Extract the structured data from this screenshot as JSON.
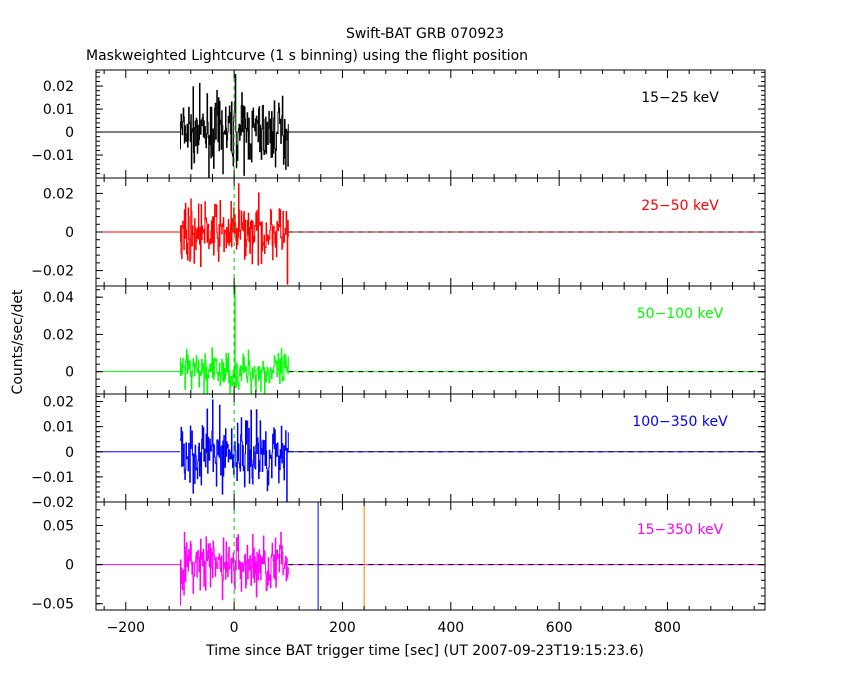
{
  "title": "Swift-BAT GRB 070923",
  "subtitle": "Maskweighted Lightcurve (1 s binning) using the flight position",
  "ylabel": "Counts/sec/det",
  "xlabel": "Time since BAT trigger time [sec] (UT 2007-09-23T19:15:23.6)",
  "chart_data": {
    "type": "line",
    "title": "Swift-BAT GRB 070923",
    "subtitle": "Maskweighted Lightcurve (1 s binning) using the flight position",
    "xlabel": "Time since BAT trigger time [sec] (UT 2007-09-23T19:15:23.6)",
    "ylabel": "Counts/sec/det",
    "xlim": [
      -255,
      980
    ],
    "x_ticks": [
      -200,
      0,
      200,
      400,
      600,
      800
    ],
    "x_tick_labels": [
      "−200",
      "0",
      "200",
      "400",
      "600",
      "800"
    ],
    "data_span": [
      -100,
      100
    ],
    "markers": [
      {
        "name": "T0",
        "x": 0,
        "color": "#00c000",
        "style": "dashed"
      },
      {
        "name": "blue-line",
        "x": 155,
        "color": "#0000ff",
        "style": "solid"
      },
      {
        "name": "orange-line",
        "x": 240,
        "color": "#ff8000",
        "style": "solid"
      }
    ],
    "panels": [
      {
        "band": "15−25 keV",
        "color": "#000000",
        "ylim": [
          -0.02,
          0.027
        ],
        "y_ticks": [
          -0.01,
          0,
          0.01,
          0.02
        ],
        "y_tick_labels": [
          "−0.01",
          "0",
          "0.01",
          "0.02"
        ],
        "noise_amplitude": 0.0085,
        "peak": {
          "x": 2,
          "y": 0.025
        },
        "tail": null,
        "dashed_zero": false
      },
      {
        "band": "25−50 keV",
        "color": "#ff0000",
        "ylim": [
          -0.028,
          0.028
        ],
        "y_ticks": [
          -0.02,
          0,
          0.02
        ],
        "y_tick_labels": [
          "−0.02",
          "0",
          "0.02"
        ],
        "noise_amplitude": 0.0085,
        "peak": {
          "x": 8,
          "y": 0.025
        },
        "tail": {
          "x": 98,
          "y": -0.027
        },
        "dashed_zero": true
      },
      {
        "band": "50−100 keV",
        "color": "#00ff00",
        "ylim": [
          -0.012,
          0.046
        ],
        "y_ticks": [
          0,
          0.02,
          0.04
        ],
        "y_tick_labels": [
          "0",
          "0.02",
          "0.04"
        ],
        "noise_amplitude": 0.0065,
        "peak": {
          "x": 1,
          "y": 0.046
        },
        "tail": null,
        "dashed_zero": true
      },
      {
        "band": "100−350 keV",
        "color": "#0000ff",
        "ylim": [
          -0.02,
          0.023
        ],
        "y_ticks": [
          -0.02,
          -0.01,
          0,
          0.01,
          0.02
        ],
        "y_tick_labels": [
          "−0.02",
          "−0.01",
          "0",
          "0.01",
          "0.02"
        ],
        "noise_amplitude": 0.0085,
        "peak": null,
        "tail": {
          "x": 97,
          "y": -0.02
        },
        "dashed_zero": true
      },
      {
        "band": "15−350 keV",
        "color": "#ff00ff",
        "ylim": [
          -0.058,
          0.08
        ],
        "y_ticks": [
          -0.05,
          0,
          0.05
        ],
        "y_tick_labels": [
          "−0.05",
          "0",
          "0.05"
        ],
        "noise_amplitude": 0.022,
        "peak": null,
        "tail": null,
        "dashed_zero": true
      }
    ]
  }
}
